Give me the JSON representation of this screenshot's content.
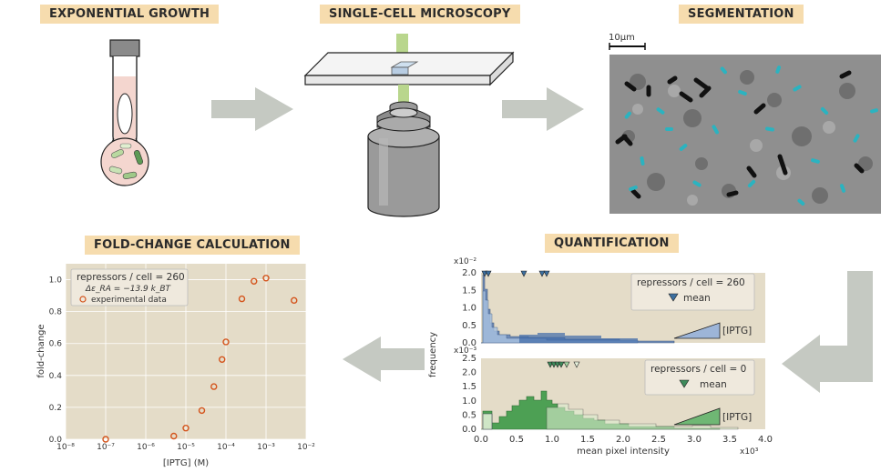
{
  "labels": {
    "exp_growth": "EXPONENTIAL GROWTH",
    "microscopy": "SINGLE-CELL MICROSCOPY",
    "segmentation": "SEGMENTATION",
    "fold_change": "FOLD-CHANGE CALCULATION",
    "quantification": "QUANTIFICATION"
  },
  "scale_bar": "10μm",
  "colors": {
    "label_bg": "#f6dcae",
    "arrow": "#c5c9c2",
    "plot_bg": "#e4dcc8",
    "point": "#d4541c",
    "blue": "#5b7fb6",
    "green": "#3d9a48"
  },
  "chart_data": [
    {
      "type": "scatter",
      "title": "",
      "xlabel": "[IPTG] (M)",
      "ylabel": "fold-change",
      "xscale": "log",
      "xlim": [
        1e-08,
        0.01
      ],
      "ylim": [
        0,
        1.1
      ],
      "xtick_labels": [
        "10⁻⁸",
        "10⁻⁷",
        "10⁻⁶",
        "10⁻⁵",
        "10⁻⁴",
        "10⁻³",
        "10⁻²"
      ],
      "ytick_labels": [
        "0.0",
        "0.2",
        "0.4",
        "0.6",
        "0.8",
        "1.0"
      ],
      "legend": {
        "line1": "repressors / cell = 260",
        "line2": "Δε_RA = −13.9 k_BT",
        "entry": "experimental data",
        "placement": "top-left"
      },
      "x": [
        1e-07,
        5e-06,
        1e-05,
        2.5e-05,
        5e-05,
        8e-05,
        0.0001,
        0.00025,
        0.0005,
        0.001,
        0.005
      ],
      "y": [
        0.0,
        0.02,
        0.07,
        0.18,
        0.33,
        0.5,
        0.61,
        0.88,
        0.99,
        1.01,
        0.87
      ]
    },
    {
      "type": "area",
      "description_role": "histogram",
      "ylabel": "frequency",
      "y_exponent": "x10⁻²",
      "ytick_labels": [
        "0.0",
        "0.5",
        "1.0",
        "1.5",
        "2.0"
      ],
      "ylim": [
        0,
        2.0
      ],
      "legend": {
        "line1": "repressors / cell = 260",
        "marker": "mean",
        "gradient": "[IPTG]",
        "placement": "top-right"
      },
      "means": [
        0.03,
        0.07,
        0.6,
        0.65,
        0.9,
        0.97
      ],
      "series_color": "blue"
    },
    {
      "type": "area",
      "description_role": "histogram",
      "y_exponent": "x10⁻³",
      "ytick_labels": [
        "0.0",
        "0.5",
        "1.0",
        "1.5",
        "2.0",
        "2.5"
      ],
      "ylim": [
        0,
        2.5
      ],
      "xlabel": "mean pixel intensity",
      "x_exponent": "x10³",
      "xtick_labels": [
        "0.0",
        "0.5",
        "1.0",
        "1.5",
        "2.0",
        "2.5",
        "3.0",
        "3.5",
        "4.0"
      ],
      "xlim": [
        0,
        4.0
      ],
      "legend": {
        "line1": "repressors / cell = 0",
        "marker": "mean",
        "gradient": "[IPTG]",
        "placement": "top-right"
      },
      "means": [
        0.85,
        0.9,
        0.95,
        1.0,
        1.1,
        1.3
      ],
      "series_color": "green"
    }
  ]
}
